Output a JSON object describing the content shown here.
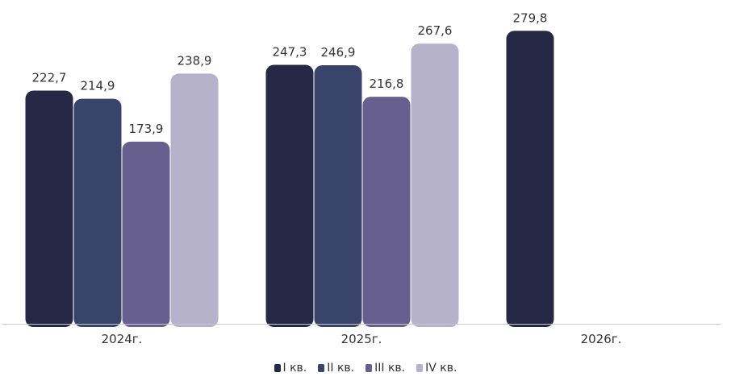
{
  "chart_data": {
    "type": "bar",
    "categories": [
      "2024г.",
      "2025г.",
      "2026г."
    ],
    "series": [
      {
        "name": "I кв.",
        "values": [
          222.7,
          247.3,
          279.8
        ],
        "labels": [
          "222,7",
          "247,3",
          "279,8"
        ],
        "color": "#252945"
      },
      {
        "name": "II кв.",
        "values": [
          214.9,
          246.9,
          null
        ],
        "labels": [
          "214,9",
          "246,9",
          ""
        ],
        "color": "#38446a"
      },
      {
        "name": "III кв.",
        "values": [
          173.9,
          216.8,
          null
        ],
        "labels": [
          "173,9",
          "216,8",
          ""
        ],
        "color": "#67608e"
      },
      {
        "name": "IV кв.",
        "values": [
          238.9,
          267.6,
          null
        ],
        "labels": [
          "238,9",
          "267,6",
          ""
        ],
        "color": "#b7b2cb"
      }
    ],
    "ylim": [
      0,
      300
    ],
    "grid": false,
    "legend_position": "bottom"
  }
}
